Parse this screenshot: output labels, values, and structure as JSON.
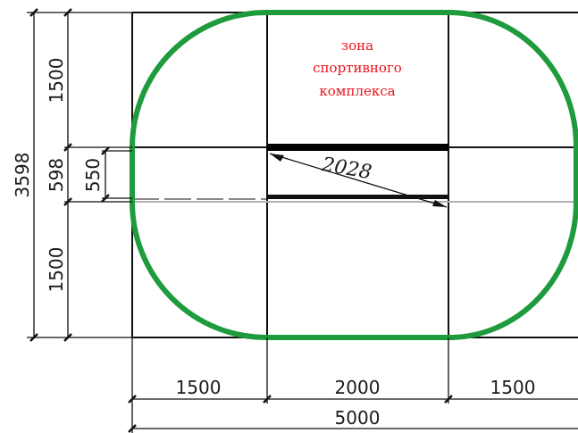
{
  "zone_label": {
    "line1": "зона",
    "line2": "спортивного",
    "line3": "комплекса"
  },
  "diagonal_label": "2028",
  "dimensions": {
    "left_total": "3598",
    "left_top": "1500",
    "left_middle": "598",
    "left_inner": "550",
    "left_bottom": "1500",
    "bottom_left": "1500",
    "bottom_middle": "2000",
    "bottom_right": "1500",
    "bottom_total": "5000"
  },
  "colors": {
    "track": "#1e9b3c",
    "zone_text": "#e8141c",
    "lines": "#111111",
    "centerline": "#b0b0b0"
  }
}
